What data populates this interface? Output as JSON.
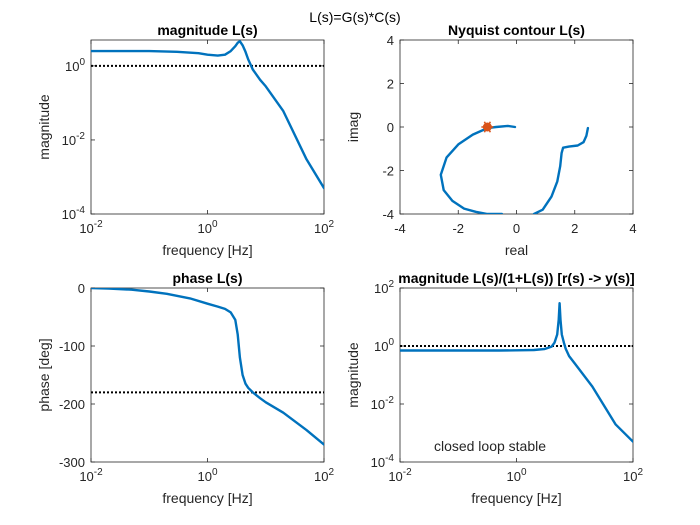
{
  "figure_title": "L(s)=G(s)*C(s)",
  "colors": {
    "curve": "#0072BD",
    "marker": "#D95319",
    "status": "#22DD22",
    "reference": "#000000"
  },
  "status_text": "closed loop stable",
  "chart_data": [
    {
      "id": "mag",
      "type": "line",
      "title": "magnitude L(s)",
      "xlabel": "frequency [Hz]",
      "ylabel": "magnitude",
      "xscale": "log",
      "yscale": "log",
      "xlim": [
        0.01,
        100
      ],
      "ylim": [
        0.0001,
        5
      ],
      "xticks": [
        {
          "value": 0.01,
          "base": "10",
          "exp": "-2"
        },
        {
          "value": 1,
          "base": "10",
          "exp": "0"
        },
        {
          "value": 100,
          "base": "10",
          "exp": "2"
        }
      ],
      "yticks": [
        {
          "value": 0.0001,
          "base": "10",
          "exp": "-4"
        },
        {
          "value": 0.01,
          "base": "10",
          "exp": "-2"
        },
        {
          "value": 1,
          "base": "10",
          "exp": "0"
        }
      ],
      "grid": false,
      "reference_line": {
        "y": 1
      },
      "series": [
        {
          "x": [
            0.01,
            0.03,
            0.1,
            0.3,
            0.7,
            1.0,
            1.5,
            2.0,
            2.5,
            3.0,
            3.3,
            3.6,
            4.0,
            4.5,
            5.0,
            6.0,
            8.0,
            10,
            20,
            50,
            100
          ],
          "y": [
            2.5,
            2.5,
            2.5,
            2.4,
            2.2,
            2.0,
            1.9,
            2.0,
            2.5,
            3.4,
            4.2,
            4.6,
            3.6,
            2.4,
            1.5,
            0.8,
            0.42,
            0.28,
            0.06,
            0.003,
            0.0005
          ]
        }
      ]
    },
    {
      "id": "nyq",
      "type": "line",
      "title": "Nyquist contour L(s)",
      "xlabel": "real",
      "ylabel": "imag",
      "xscale": "linear",
      "yscale": "linear",
      "xlim": [
        -4,
        4
      ],
      "ylim": [
        -4,
        4
      ],
      "xticks": [
        {
          "value": -4,
          "text": "-4"
        },
        {
          "value": -2,
          "text": "-2"
        },
        {
          "value": 0,
          "text": "0"
        },
        {
          "value": 2,
          "text": "2"
        },
        {
          "value": 4,
          "text": "4"
        }
      ],
      "yticks": [
        {
          "value": -4,
          "text": "-4"
        },
        {
          "value": -2,
          "text": "-2"
        },
        {
          "value": 0,
          "text": "0"
        },
        {
          "value": 2,
          "text": "2"
        },
        {
          "value": 4,
          "text": "4"
        }
      ],
      "grid": false,
      "marker_point": {
        "x": -1,
        "y": 0
      },
      "series": [
        {
          "x": [
            2.45,
            2.4,
            2.3,
            2.1,
            1.8,
            1.6,
            1.55,
            1.5,
            1.4,
            1.2,
            0.9,
            0.6
          ],
          "y": [
            -0.05,
            -0.4,
            -0.7,
            -0.85,
            -0.9,
            -0.95,
            -1.2,
            -1.8,
            -2.5,
            -3.2,
            -3.8,
            -4.0
          ]
        },
        {
          "x": [
            -0.05,
            -0.3,
            -0.7,
            -1.0,
            -1.5,
            -2.0,
            -2.4,
            -2.6,
            -2.5,
            -2.2,
            -1.8,
            -1.4,
            -1.0,
            -0.7,
            -0.5
          ],
          "y": [
            0.0,
            0.05,
            0.0,
            -0.05,
            -0.35,
            -0.8,
            -1.4,
            -2.2,
            -2.9,
            -3.4,
            -3.75,
            -3.9,
            -4.0,
            -4.0,
            -4.0
          ]
        }
      ]
    },
    {
      "id": "phase",
      "type": "line",
      "title": "phase L(s)",
      "xlabel": "frequency [Hz]",
      "ylabel": "phase [deg]",
      "xscale": "log",
      "yscale": "linear",
      "xlim": [
        0.01,
        100
      ],
      "ylim": [
        -300,
        0
      ],
      "xticks": [
        {
          "value": 0.01,
          "base": "10",
          "exp": "-2"
        },
        {
          "value": 1,
          "base": "10",
          "exp": "0"
        },
        {
          "value": 100,
          "base": "10",
          "exp": "2"
        }
      ],
      "yticks": [
        {
          "value": -300,
          "text": "-300"
        },
        {
          "value": -200,
          "text": "-200"
        },
        {
          "value": -100,
          "text": "-100"
        },
        {
          "value": 0,
          "text": "0"
        }
      ],
      "grid": false,
      "reference_line": {
        "y": -180
      },
      "series": [
        {
          "x": [
            0.01,
            0.02,
            0.05,
            0.1,
            0.2,
            0.5,
            1.0,
            1.5,
            2.0,
            2.5,
            3.0,
            3.3,
            3.6,
            4.0,
            4.5,
            5.0,
            6.0,
            8.0,
            10,
            20,
            50,
            100
          ],
          "y": [
            0,
            -1,
            -3,
            -6,
            -10,
            -18,
            -27,
            -32,
            -36,
            -42,
            -55,
            -80,
            -120,
            -150,
            -165,
            -172,
            -180,
            -190,
            -197,
            -215,
            -245,
            -270
          ]
        }
      ]
    },
    {
      "id": "cl",
      "type": "line",
      "title": "magnitude L(s)/(1+L(s))  [r(s) -> y(s)]",
      "xlabel": "frequency [Hz]",
      "ylabel": "magnitude",
      "xscale": "log",
      "yscale": "log",
      "xlim": [
        0.01,
        100
      ],
      "ylim": [
        0.0001,
        100
      ],
      "xticks": [
        {
          "value": 0.01,
          "base": "10",
          "exp": "-2"
        },
        {
          "value": 1,
          "base": "10",
          "exp": "0"
        },
        {
          "value": 100,
          "base": "10",
          "exp": "2"
        }
      ],
      "yticks": [
        {
          "value": 0.0001,
          "base": "10",
          "exp": "-4"
        },
        {
          "value": 0.01,
          "base": "10",
          "exp": "-2"
        },
        {
          "value": 1,
          "base": "10",
          "exp": "0"
        },
        {
          "value": 100,
          "base": "10",
          "exp": "2"
        }
      ],
      "grid": false,
      "reference_line": {
        "y": 1
      },
      "series": [
        {
          "x": [
            0.01,
            0.1,
            0.5,
            1.0,
            2.0,
            3.0,
            4.0,
            4.5,
            5.0,
            5.3,
            5.5,
            5.7,
            6.0,
            6.5,
            7.0,
            8.0,
            10,
            20,
            50,
            100
          ],
          "y": [
            0.7,
            0.7,
            0.7,
            0.71,
            0.73,
            0.78,
            0.95,
            1.3,
            2.5,
            8,
            30,
            8,
            2.5,
            1.3,
            0.8,
            0.45,
            0.25,
            0.04,
            0.002,
            0.0005
          ]
        }
      ]
    }
  ]
}
